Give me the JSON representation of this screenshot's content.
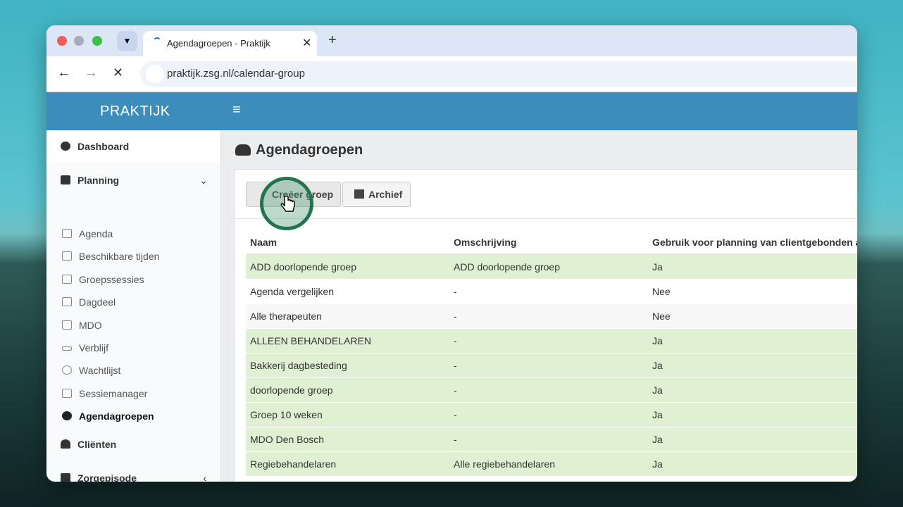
{
  "browser": {
    "tab_title": "Agendagroepen - Praktijk",
    "url": "praktijk.zsg.nl/calendar-group"
  },
  "app": {
    "brand": "PRAKTIJK"
  },
  "sidebar": {
    "items": [
      "Dashboard",
      "Planning",
      "Cliënten",
      "Zorgepisode"
    ],
    "planning_items": [
      "Agenda",
      "Beschikbare tijden",
      "Groepssessies",
      "Dagdeel",
      "MDO",
      "Verblijf",
      "Wachtlijst",
      "Sessiemanager",
      "Agendagroepen"
    ]
  },
  "page": {
    "title": "Agendagroepen",
    "buttons": [
      "Creëer groep",
      "Archief"
    ]
  },
  "table": {
    "headers": [
      "Naam",
      "Omschrijving",
      "Gebruik voor planning van clientgebonden af"
    ],
    "rows": [
      [
        "ADD doorlopende groep",
        "ADD doorlopende groep",
        "Ja"
      ],
      [
        "Agenda vergelijken",
        "-",
        "Nee"
      ],
      [
        "Alle therapeuten",
        "-",
        "Nee"
      ],
      [
        "ALLEEN BEHANDELAREN",
        "-",
        "Ja"
      ],
      [
        "Bakkerij dagbesteding",
        "-",
        "Ja"
      ],
      [
        "doorlopende groep",
        "-",
        "Ja"
      ],
      [
        "Groep 10 weken",
        "-",
        "Ja"
      ],
      [
        "MDO Den Bosch",
        "-",
        "Ja"
      ],
      [
        "Regiebehandelaren",
        "Alle regiebehandelaren",
        "Ja"
      ]
    ]
  }
}
